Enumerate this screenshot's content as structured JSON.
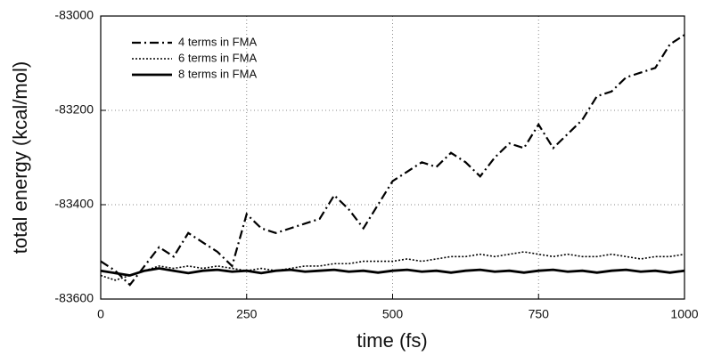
{
  "chart_data": {
    "type": "line",
    "xlabel": "time (fs)",
    "ylabel": "total energy (kcal/mol)",
    "x": [
      0,
      25,
      50,
      75,
      100,
      125,
      150,
      175,
      200,
      225,
      250,
      275,
      300,
      325,
      350,
      375,
      400,
      425,
      450,
      475,
      500,
      525,
      550,
      575,
      600,
      625,
      650,
      675,
      700,
      725,
      750,
      775,
      800,
      825,
      850,
      875,
      900,
      925,
      950,
      975,
      1000
    ],
    "series": [
      {
        "name": "4 terms in FMA",
        "color": "#000000",
        "style": "dashdot",
        "values": [
          -83520,
          -83540,
          -83570,
          -83530,
          -83490,
          -83510,
          -83460,
          -83480,
          -83500,
          -83530,
          -83420,
          -83450,
          -83460,
          -83450,
          -83440,
          -83430,
          -83380,
          -83410,
          -83450,
          -83400,
          -83350,
          -83330,
          -83310,
          -83320,
          -83290,
          -83310,
          -83340,
          -83300,
          -83270,
          -83280,
          -83230,
          -83280,
          -83250,
          -83220,
          -83170,
          -83160,
          -83130,
          -83120,
          -83110,
          -83060,
          -83040
        ]
      },
      {
        "name": "6 terms in FMA",
        "color": "#000000",
        "style": "dotted",
        "values": [
          -83550,
          -83560,
          -83550,
          -83540,
          -83530,
          -83535,
          -83530,
          -83535,
          -83530,
          -83535,
          -83540,
          -83535,
          -83540,
          -83535,
          -83530,
          -83530,
          -83525,
          -83525,
          -83520,
          -83520,
          -83520,
          -83515,
          -83520,
          -83515,
          -83510,
          -83510,
          -83505,
          -83510,
          -83505,
          -83500,
          -83505,
          -83510,
          -83505,
          -83510,
          -83510,
          -83505,
          -83510,
          -83515,
          -83510,
          -83510,
          -83505
        ]
      },
      {
        "name": "8 terms in FMA",
        "color": "#000000",
        "style": "solid",
        "values": [
          -83540,
          -83545,
          -83550,
          -83540,
          -83535,
          -83540,
          -83545,
          -83540,
          -83538,
          -83542,
          -83540,
          -83545,
          -83540,
          -83538,
          -83542,
          -83540,
          -83538,
          -83542,
          -83540,
          -83544,
          -83540,
          -83538,
          -83542,
          -83540,
          -83544,
          -83540,
          -83538,
          -83542,
          -83540,
          -83544,
          -83540,
          -83538,
          -83542,
          -83540,
          -83544,
          -83540,
          -83538,
          -83542,
          -83540,
          -83544,
          -83540
        ]
      }
    ],
    "xlim": [
      0,
      1000
    ],
    "xticks": [
      0,
      250,
      500,
      750,
      1000
    ],
    "ylim": [
      -83600,
      -83000
    ],
    "yticks": [
      -83000,
      -83200,
      -83400,
      -83600
    ],
    "grid": true,
    "legend": "upper left"
  }
}
